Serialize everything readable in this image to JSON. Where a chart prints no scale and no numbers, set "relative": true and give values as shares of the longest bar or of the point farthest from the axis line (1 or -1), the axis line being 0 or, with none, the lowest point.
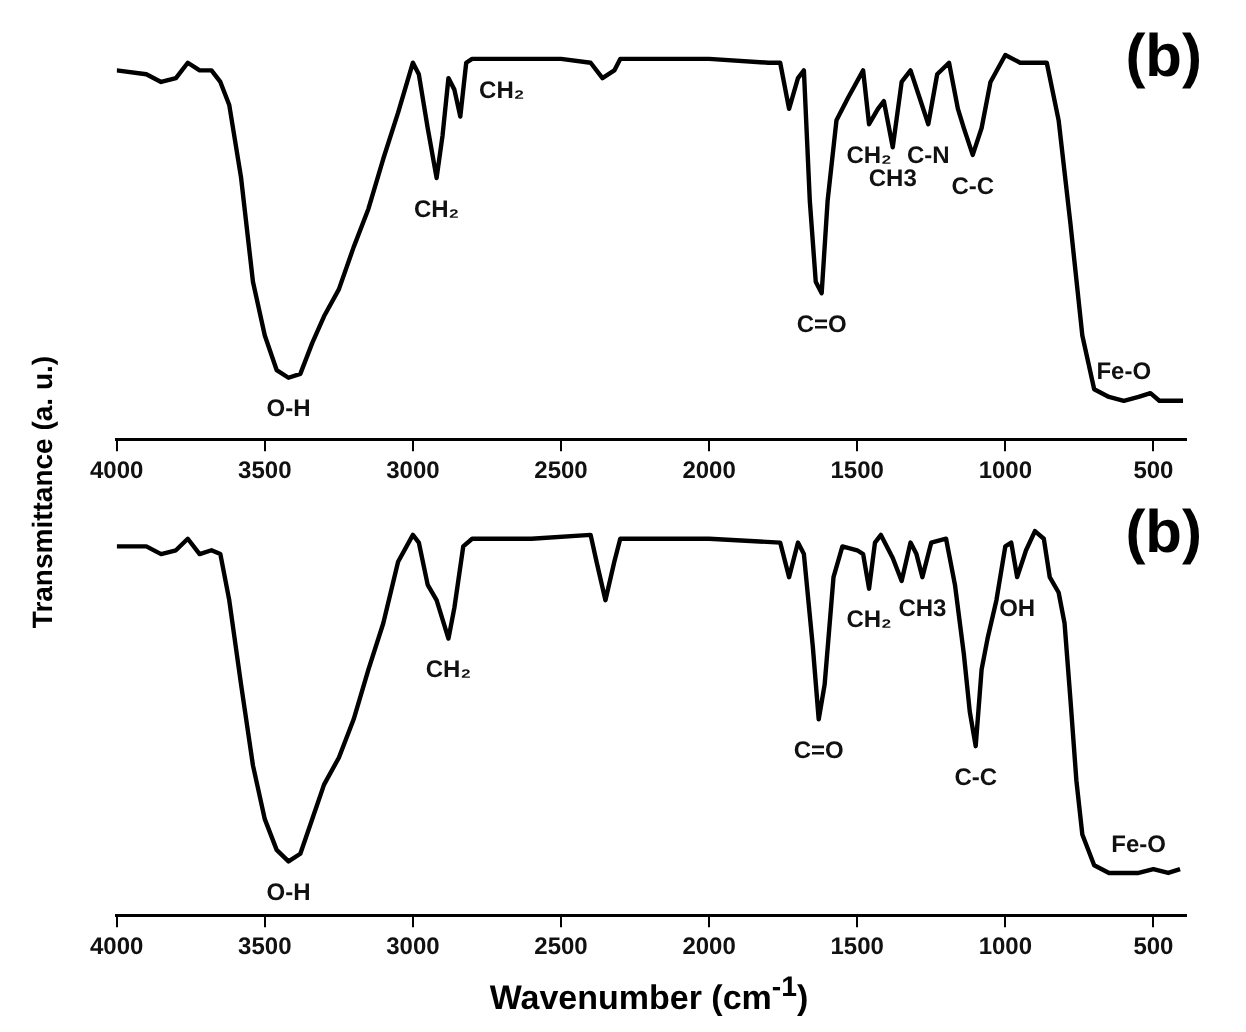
{
  "chart_data": [
    {
      "type": "line",
      "title": "(b)",
      "ylabel": "Transmittance (a. u.)",
      "relative": true,
      "color": "#000000",
      "xlim": [
        4000,
        390
      ],
      "xticks": [
        4000,
        3500,
        3000,
        2500,
        2000,
        1500,
        1000,
        500
      ],
      "x": [
        4000,
        3900,
        3850,
        3800,
        3760,
        3720,
        3680,
        3650,
        3620,
        3580,
        3540,
        3500,
        3460,
        3420,
        3380,
        3340,
        3300,
        3250,
        3200,
        3150,
        3100,
        3050,
        3000,
        2980,
        2950,
        2920,
        2900,
        2880,
        2860,
        2840,
        2820,
        2800,
        2700,
        2500,
        2400,
        2360,
        2320,
        2300,
        2000,
        1800,
        1760,
        1730,
        1700,
        1680,
        1660,
        1640,
        1620,
        1600,
        1570,
        1530,
        1480,
        1460,
        1430,
        1410,
        1380,
        1350,
        1320,
        1290,
        1260,
        1230,
        1190,
        1160,
        1140,
        1110,
        1080,
        1050,
        1000,
        950,
        900,
        860,
        820,
        780,
        740,
        700,
        650,
        600,
        550,
        510,
        480,
        400
      ],
      "values": [
        0.96,
        0.95,
        0.93,
        0.94,
        0.98,
        0.96,
        0.96,
        0.93,
        0.87,
        0.68,
        0.41,
        0.27,
        0.18,
        0.16,
        0.17,
        0.25,
        0.32,
        0.39,
        0.5,
        0.6,
        0.73,
        0.85,
        0.98,
        0.95,
        0.81,
        0.68,
        0.79,
        0.94,
        0.91,
        0.84,
        0.98,
        0.99,
        0.99,
        0.99,
        0.98,
        0.94,
        0.96,
        0.99,
        0.99,
        0.98,
        0.98,
        0.86,
        0.94,
        0.96,
        0.62,
        0.41,
        0.38,
        0.62,
        0.83,
        0.89,
        0.96,
        0.82,
        0.86,
        0.88,
        0.76,
        0.93,
        0.96,
        0.89,
        0.82,
        0.95,
        0.98,
        0.86,
        0.81,
        0.74,
        0.81,
        0.93,
        1,
        0.98,
        0.98,
        0.98,
        0.83,
        0.56,
        0.27,
        0.13,
        0.11,
        0.1,
        0.11,
        0.12,
        0.1,
        0.1
      ],
      "annotations": [
        {
          "text": "O-H",
          "x": 3420,
          "y": 0.16
        },
        {
          "text": "CH₂",
          "x": 2920,
          "y": 0.68
        },
        {
          "text": "CH₂",
          "x": 2700,
          "y": 0.99
        },
        {
          "text": "C=O",
          "x": 1620,
          "y": 0.38
        },
        {
          "text": "CH₂",
          "x": 1460,
          "y": 0.82
        },
        {
          "text": "CH3",
          "x": 1380,
          "y": 0.76
        },
        {
          "text": "C-N",
          "x": 1260,
          "y": 0.82
        },
        {
          "text": "C-C",
          "x": 1110,
          "y": 0.74
        },
        {
          "text": "Fe-O",
          "x": 600,
          "y": 0.1
        }
      ]
    },
    {
      "type": "line",
      "title": "(b)",
      "xlabel": "Wavenumber (cm$^{-1}$)",
      "relative": true,
      "color": "#000000",
      "xlim": [
        4000,
        390
      ],
      "xticks": [
        4000,
        3500,
        3000,
        2500,
        2000,
        1500,
        1000,
        500
      ],
      "x": [
        4000,
        3900,
        3850,
        3800,
        3760,
        3720,
        3680,
        3650,
        3620,
        3580,
        3540,
        3500,
        3460,
        3420,
        3380,
        3340,
        3300,
        3250,
        3200,
        3150,
        3100,
        3050,
        3000,
        2980,
        2950,
        2920,
        2880,
        2860,
        2830,
        2800,
        2600,
        2400,
        2380,
        2350,
        2320,
        2300,
        2000,
        1760,
        1730,
        1700,
        1680,
        1650,
        1630,
        1610,
        1580,
        1550,
        1500,
        1480,
        1460,
        1440,
        1420,
        1380,
        1350,
        1320,
        1300,
        1280,
        1250,
        1200,
        1170,
        1140,
        1120,
        1100,
        1080,
        1060,
        1030,
        1000,
        980,
        960,
        930,
        900,
        870,
        850,
        820,
        800,
        780,
        760,
        740,
        700,
        650,
        550,
        500,
        450,
        410
      ],
      "values": [
        0.96,
        0.96,
        0.94,
        0.95,
        0.98,
        0.94,
        0.95,
        0.94,
        0.82,
        0.6,
        0.39,
        0.25,
        0.17,
        0.14,
        0.16,
        0.25,
        0.34,
        0.41,
        0.51,
        0.64,
        0.76,
        0.92,
        0.99,
        0.97,
        0.86,
        0.82,
        0.72,
        0.8,
        0.96,
        0.98,
        0.98,
        0.99,
        0.92,
        0.82,
        0.92,
        0.98,
        0.98,
        0.97,
        0.88,
        0.97,
        0.94,
        0.7,
        0.51,
        0.6,
        0.88,
        0.96,
        0.95,
        0.94,
        0.85,
        0.97,
        0.99,
        0.93,
        0.87,
        0.97,
        0.94,
        0.88,
        0.97,
        0.98,
        0.86,
        0.68,
        0.53,
        0.44,
        0.64,
        0.72,
        0.82,
        0.96,
        0.97,
        0.88,
        0.95,
        1,
        0.98,
        0.88,
        0.84,
        0.76,
        0.56,
        0.35,
        0.21,
        0.13,
        0.11,
        0.11,
        0.12,
        0.11,
        0.12
      ],
      "annotations": [
        {
          "text": "O-H",
          "x": 3420,
          "y": 0.14
        },
        {
          "text": "CH₂",
          "x": 2880,
          "y": 0.72
        },
        {
          "text": "C=O",
          "x": 1630,
          "y": 0.51
        },
        {
          "text": "CH₂",
          "x": 1460,
          "y": 0.85
        },
        {
          "text": "CH3",
          "x": 1280,
          "y": 0.88
        },
        {
          "text": "OH",
          "x": 960,
          "y": 0.88
        },
        {
          "text": "C-C",
          "x": 1100,
          "y": 0.44
        },
        {
          "text": "Fe-O",
          "x": 550,
          "y": 0.11
        }
      ]
    }
  ]
}
